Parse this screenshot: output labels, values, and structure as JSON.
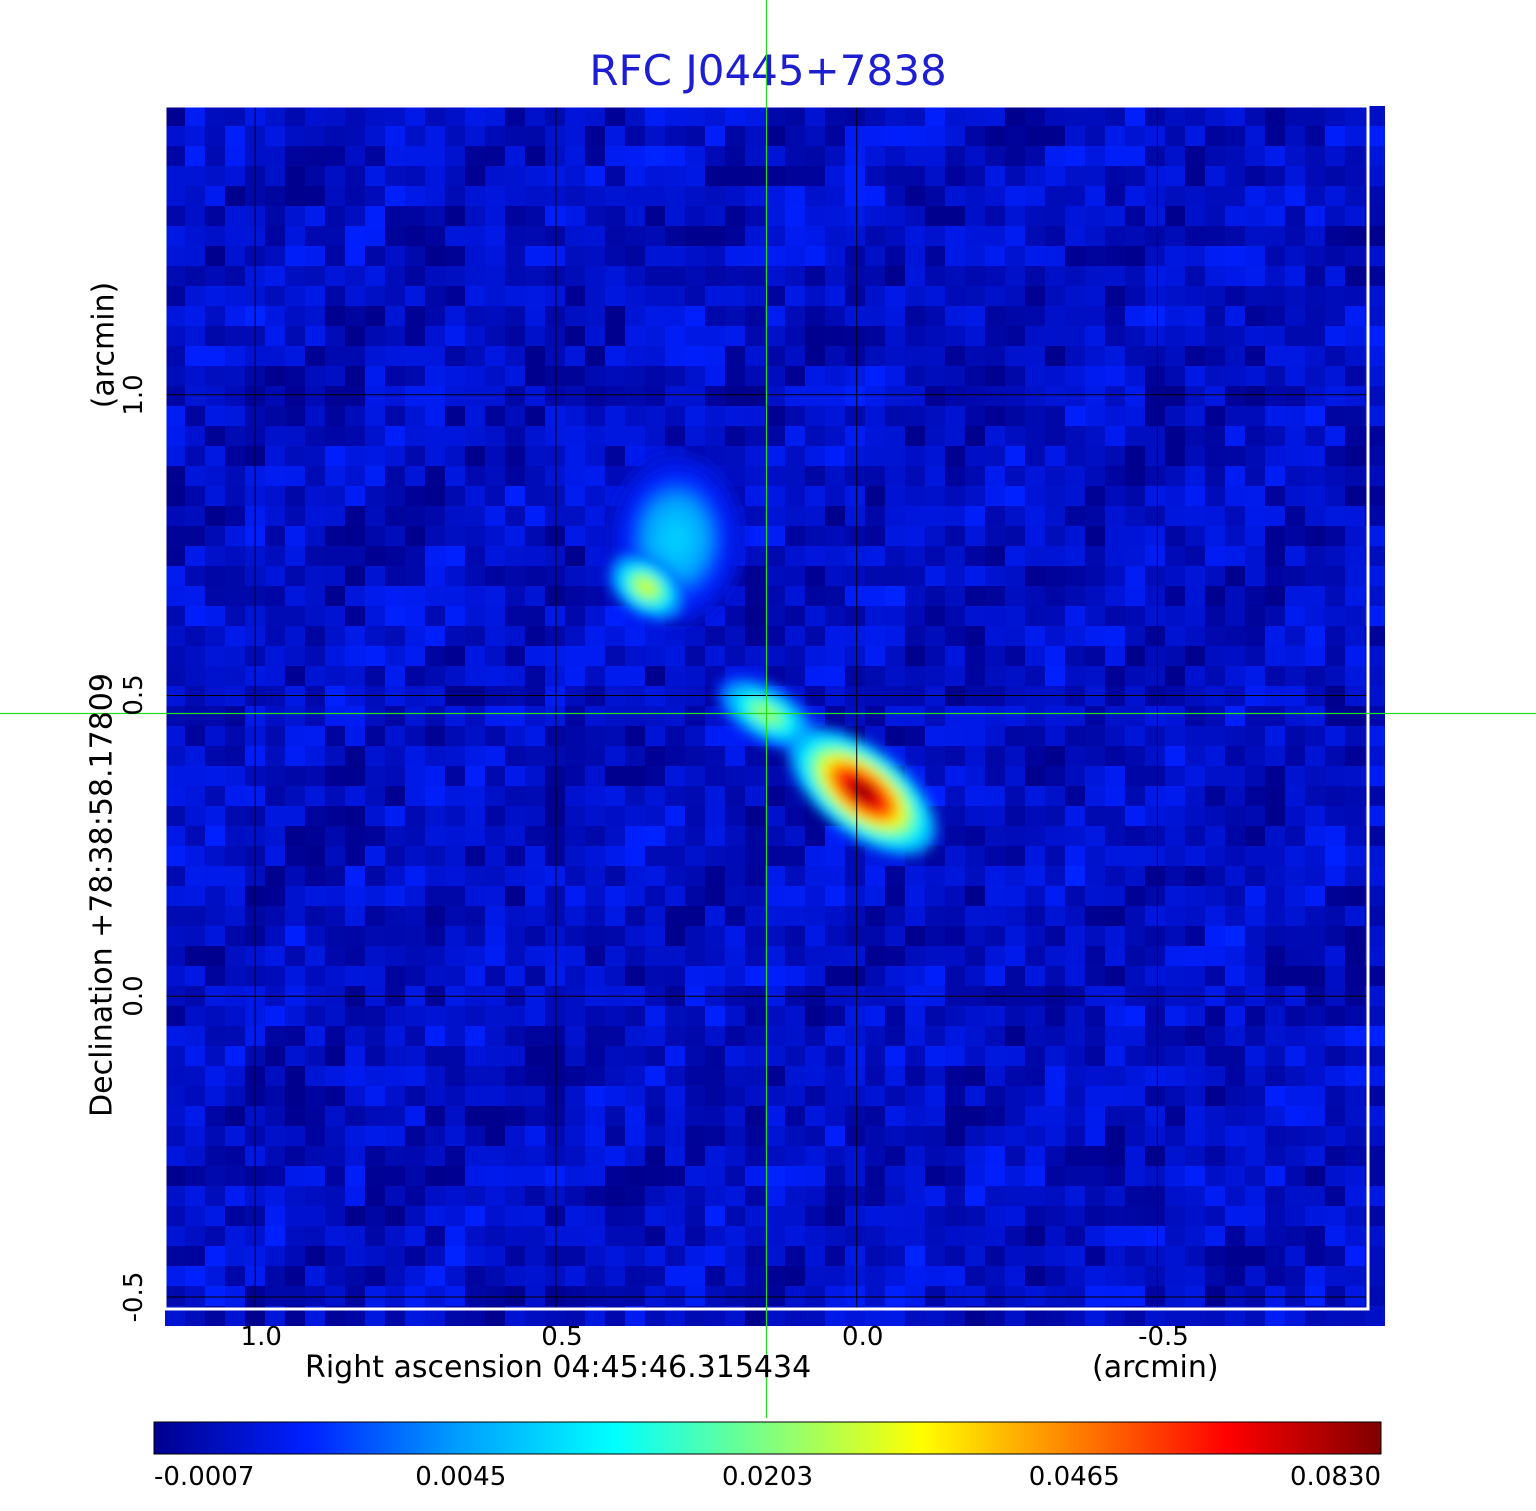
{
  "title": "RFC J0445+7838",
  "chart_data": {
    "type": "heatmap",
    "title": "RFC J0445+7838",
    "xlabel": "Right ascension  04:45:46.315434",
    "xunit": "(arcmin)",
    "ylabel": "Declination  +78:38:58.17809",
    "yunit": "(arcmin)",
    "x_ticks": [
      "1.0",
      "0.5",
      "0.0",
      "-0.5"
    ],
    "y_ticks": [
      "1.0",
      "0.5",
      "0.0",
      "-0.5"
    ],
    "xlim": [
      1.15,
      -0.85
    ],
    "ylim": [
      -0.52,
      1.48
    ],
    "grid": true,
    "crosshair": {
      "x": 0.15,
      "y": 0.47,
      "color": "#22dd22"
    },
    "colorbar": {
      "ticks": [
        "-0.0007",
        "0.0045",
        "0.0203",
        "0.0465",
        "0.0830"
      ],
      "colormap": [
        "#00008f",
        "#0020ff",
        "#00a0ff",
        "#00ffff",
        "#80ff80",
        "#ffff00",
        "#ff8000",
        "#ff0000",
        "#800000"
      ]
    },
    "sources": [
      {
        "x": -0.01,
        "y": 0.34,
        "peak": 0.083,
        "sx": 0.09,
        "sy": 0.045,
        "angle": 38
      },
      {
        "x": 0.15,
        "y": 0.47,
        "peak": 0.024,
        "sx": 0.06,
        "sy": 0.03,
        "angle": 30
      },
      {
        "x": 0.35,
        "y": 0.68,
        "peak": 0.03,
        "sx": 0.045,
        "sy": 0.03,
        "angle": 35
      },
      {
        "x": 0.3,
        "y": 0.76,
        "peak": 0.008,
        "sx": 0.07,
        "sy": 0.09,
        "angle": 0
      }
    ],
    "background": 0.0005
  }
}
